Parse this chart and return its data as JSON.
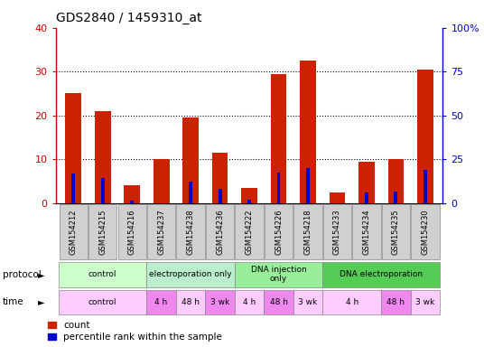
{
  "title": "GDS2840 / 1459310_at",
  "samples": [
    "GSM154212",
    "GSM154215",
    "GSM154216",
    "GSM154237",
    "GSM154238",
    "GSM154236",
    "GSM154222",
    "GSM154226",
    "GSM154218",
    "GSM154233",
    "GSM154234",
    "GSM154235",
    "GSM154230"
  ],
  "count_values": [
    25.0,
    21.0,
    4.0,
    10.0,
    19.5,
    11.5,
    3.5,
    29.5,
    32.5,
    2.5,
    9.5,
    10.0,
    30.5
  ],
  "percentile_values": [
    17.0,
    14.0,
    1.5,
    0.0,
    12.0,
    8.0,
    2.0,
    17.5,
    20.0,
    0.0,
    6.0,
    6.5,
    19.0
  ],
  "left_ylim": [
    0,
    40
  ],
  "right_ylim": [
    0,
    100
  ],
  "left_yticks": [
    0,
    10,
    20,
    30,
    40
  ],
  "right_yticks": [
    0,
    25,
    50,
    75,
    100
  ],
  "right_yticklabels": [
    "0",
    "25",
    "50",
    "75",
    "100%"
  ],
  "left_ycolor": "#cc0000",
  "right_ycolor": "#0000cc",
  "bar_color_red": "#cc2200",
  "bar_color_blue": "#0000cc",
  "grid_color": "#000000",
  "title_fontsize": 10,
  "protocol_groups": [
    [
      0,
      2,
      "control",
      "#ccffcc"
    ],
    [
      3,
      5,
      "electroporation only",
      "#bbeecc"
    ],
    [
      6,
      8,
      "DNA injection\nonly",
      "#99ee99"
    ],
    [
      9,
      12,
      "DNA electroporation",
      "#55cc55"
    ]
  ],
  "time_groups": [
    [
      0,
      2,
      "control",
      "#ffccff"
    ],
    [
      3,
      3,
      "4 h",
      "#ee88ee"
    ],
    [
      4,
      4,
      "48 h",
      "#ffccff"
    ],
    [
      5,
      5,
      "3 wk",
      "#ee88ee"
    ],
    [
      6,
      6,
      "4 h",
      "#ffccff"
    ],
    [
      7,
      7,
      "48 h",
      "#ee88ee"
    ],
    [
      8,
      8,
      "3 wk",
      "#ffccff"
    ],
    [
      9,
      10,
      "4 h",
      "#ffccff"
    ],
    [
      11,
      11,
      "48 h",
      "#ee88ee"
    ],
    [
      12,
      12,
      "3 wk",
      "#ffccff"
    ]
  ],
  "legend_red_label": "count",
  "legend_blue_label": "percentile rank within the sample"
}
